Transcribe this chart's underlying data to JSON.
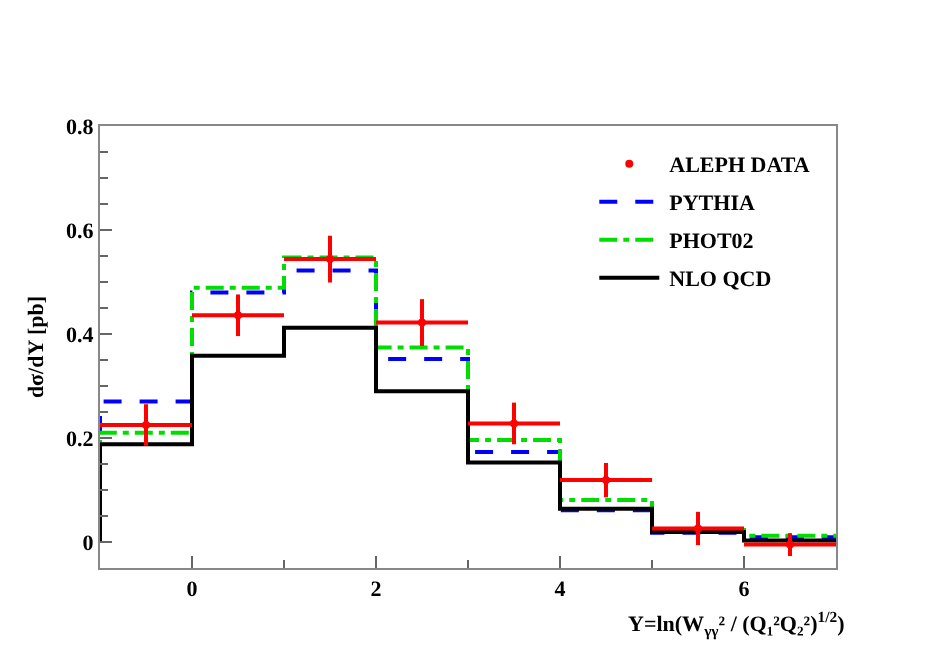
{
  "chart_data": {
    "type": "histogram",
    "xlabel": "Y=ln(W$_{γγ}$² / (Q₁²Q₂²)$^{1/2}$)",
    "ylabel": "dσ/dY [pb]",
    "bins": [
      -1,
      0,
      1,
      2,
      3,
      4,
      5,
      6,
      7
    ],
    "xlim": [
      -1,
      7
    ],
    "xticks": [
      0,
      2,
      4,
      6
    ],
    "ylim": [
      -0.05,
      0.8
    ],
    "yticks": [
      0,
      0.2,
      0.4,
      0.6,
      0.8
    ],
    "grid": false,
    "legend": "top right",
    "series": [
      {
        "name": "ALEPH DATA",
        "type": "scatter",
        "color": "#ff0000",
        "marker": "circle",
        "x": [
          -0.5,
          0.5,
          1.5,
          2.5,
          3.5,
          4.5,
          5.5,
          6.5
        ],
        "values": [
          0.225,
          0.436,
          0.544,
          0.422,
          0.228,
          0.119,
          0.026,
          -0.005
        ],
        "errors": [
          0.04,
          0.04,
          0.045,
          0.045,
          0.04,
          0.033,
          0.032,
          0.022
        ],
        "xerrors": [
          0.5,
          0.5,
          0.5,
          0.5,
          0.5,
          0.5,
          0.5,
          0.5
        ]
      },
      {
        "name": "PYTHIA",
        "color": "#0000ff",
        "line_style": "dashed",
        "values": [
          0.27,
          0.48,
          0.522,
          0.352,
          0.173,
          0.061,
          0.018,
          0.009
        ]
      },
      {
        "name": "PHOT02",
        "color": "#00dd00",
        "line_style": "dotted",
        "values": [
          0.21,
          0.489,
          0.547,
          0.374,
          0.196,
          0.081,
          0.023,
          0.012
        ]
      },
      {
        "name": "NLO QCD",
        "color": "#000000",
        "line_style": "solid",
        "values": [
          0.188,
          0.358,
          0.412,
          0.29,
          0.153,
          0.064,
          0.019,
          0.003
        ]
      }
    ]
  }
}
